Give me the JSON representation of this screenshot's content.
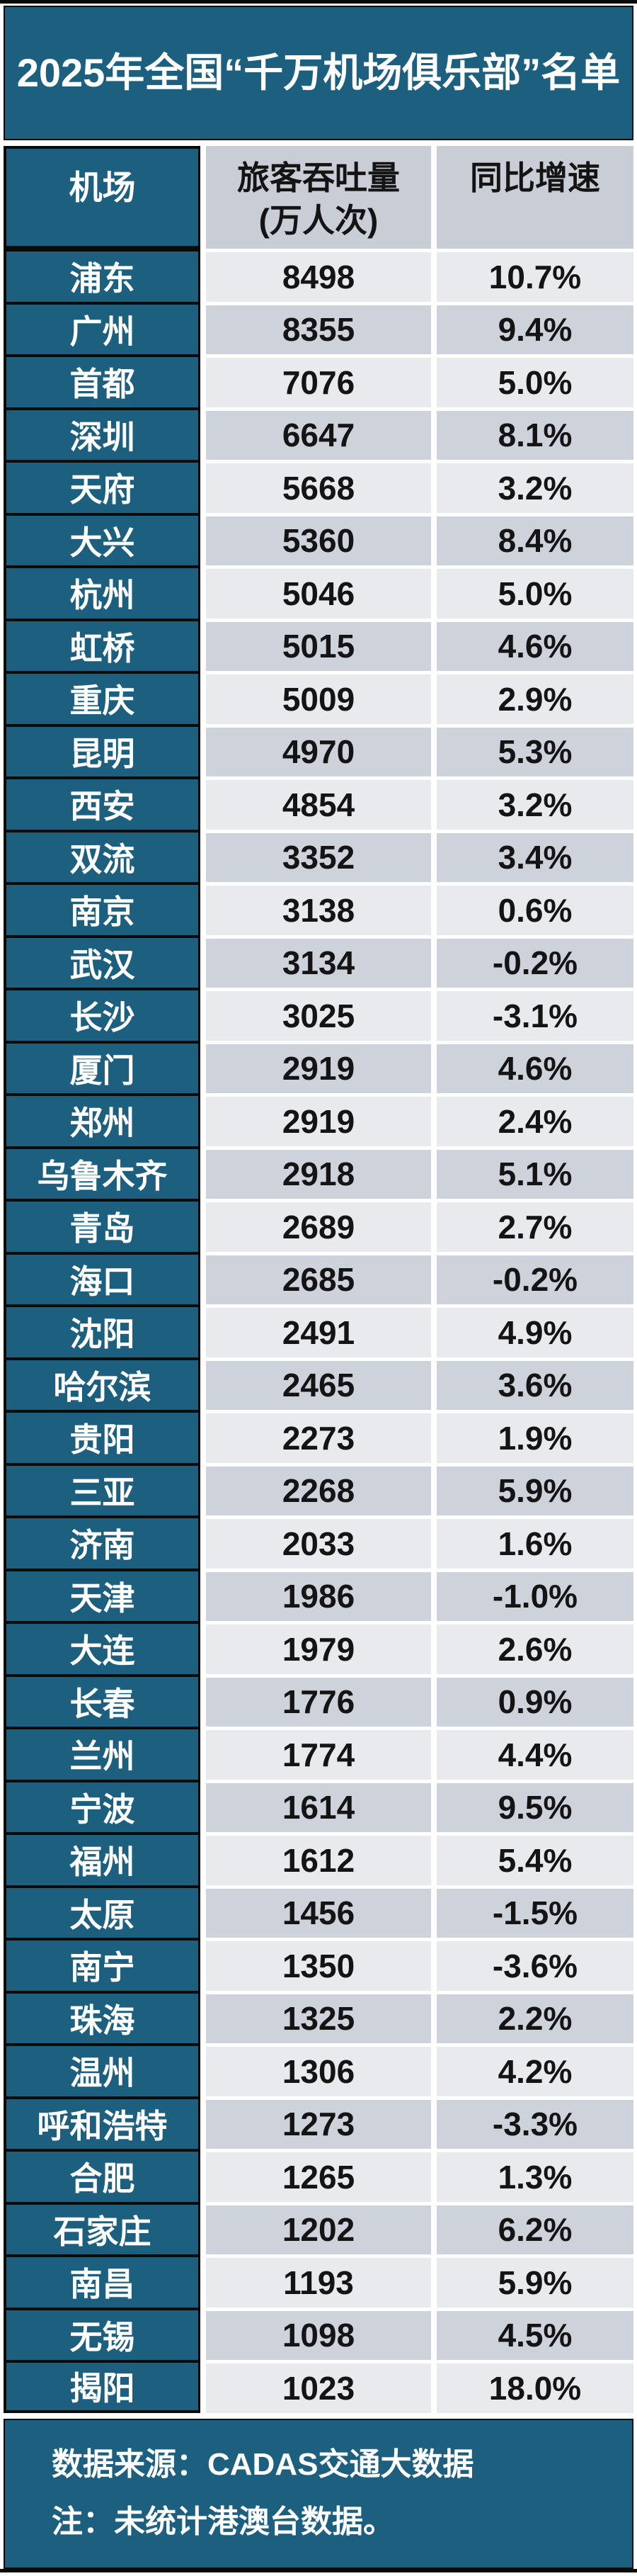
{
  "page": {
    "title": "2025年全国“千万机场俱乐部”名单"
  },
  "table": {
    "headers": {
      "airport": "机场",
      "throughput_line1": "旅客吞吐量",
      "throughput_line2": "(万人次)",
      "growth": "同比增速"
    },
    "rows": [
      {
        "airport": "浦东",
        "throughput": "8498",
        "growth": "10.7%"
      },
      {
        "airport": "广州",
        "throughput": "8355",
        "growth": "9.4%"
      },
      {
        "airport": "首都",
        "throughput": "7076",
        "growth": "5.0%"
      },
      {
        "airport": "深圳",
        "throughput": "6647",
        "growth": "8.1%"
      },
      {
        "airport": "天府",
        "throughput": "5668",
        "growth": "3.2%"
      },
      {
        "airport": "大兴",
        "throughput": "5360",
        "growth": "8.4%"
      },
      {
        "airport": "杭州",
        "throughput": "5046",
        "growth": "5.0%"
      },
      {
        "airport": "虹桥",
        "throughput": "5015",
        "growth": "4.6%"
      },
      {
        "airport": "重庆",
        "throughput": "5009",
        "growth": "2.9%"
      },
      {
        "airport": "昆明",
        "throughput": "4970",
        "growth": "5.3%"
      },
      {
        "airport": "西安",
        "throughput": "4854",
        "growth": "3.2%"
      },
      {
        "airport": "双流",
        "throughput": "3352",
        "growth": "3.4%"
      },
      {
        "airport": "南京",
        "throughput": "3138",
        "growth": "0.6%"
      },
      {
        "airport": "武汉",
        "throughput": "3134",
        "growth": "-0.2%"
      },
      {
        "airport": "长沙",
        "throughput": "3025",
        "growth": "-3.1%"
      },
      {
        "airport": "厦门",
        "throughput": "2919",
        "growth": "4.6%"
      },
      {
        "airport": "郑州",
        "throughput": "2919",
        "growth": "2.4%"
      },
      {
        "airport": "乌鲁木齐",
        "throughput": "2918",
        "growth": "5.1%"
      },
      {
        "airport": "青岛",
        "throughput": "2689",
        "growth": "2.7%"
      },
      {
        "airport": "海口",
        "throughput": "2685",
        "growth": "-0.2%"
      },
      {
        "airport": "沈阳",
        "throughput": "2491",
        "growth": "4.9%"
      },
      {
        "airport": "哈尔滨",
        "throughput": "2465",
        "growth": "3.6%"
      },
      {
        "airport": "贵阳",
        "throughput": "2273",
        "growth": "1.9%"
      },
      {
        "airport": "三亚",
        "throughput": "2268",
        "growth": "5.9%"
      },
      {
        "airport": "济南",
        "throughput": "2033",
        "growth": "1.6%"
      },
      {
        "airport": "天津",
        "throughput": "1986",
        "growth": "-1.0%"
      },
      {
        "airport": "大连",
        "throughput": "1979",
        "growth": "2.6%"
      },
      {
        "airport": "长春",
        "throughput": "1776",
        "growth": "0.9%"
      },
      {
        "airport": "兰州",
        "throughput": "1774",
        "growth": "4.4%"
      },
      {
        "airport": "宁波",
        "throughput": "1614",
        "growth": "9.5%"
      },
      {
        "airport": "福州",
        "throughput": "1612",
        "growth": "5.4%"
      },
      {
        "airport": "太原",
        "throughput": "1456",
        "growth": "-1.5%"
      },
      {
        "airport": "南宁",
        "throughput": "1350",
        "growth": "-3.6%"
      },
      {
        "airport": "珠海",
        "throughput": "1325",
        "growth": "2.2%"
      },
      {
        "airport": "温州",
        "throughput": "1306",
        "growth": "4.2%"
      },
      {
        "airport": "呼和浩特",
        "throughput": "1273",
        "growth": "-3.3%"
      },
      {
        "airport": "合肥",
        "throughput": "1265",
        "growth": "1.3%"
      },
      {
        "airport": "石家庄",
        "throughput": "1202",
        "growth": "6.2%"
      },
      {
        "airport": "南昌",
        "throughput": "1193",
        "growth": "5.9%"
      },
      {
        "airport": "无锡",
        "throughput": "1098",
        "growth": "4.5%"
      },
      {
        "airport": "揭阳",
        "throughput": "1023",
        "growth": "18.0%"
      }
    ]
  },
  "footer": {
    "source_line": "数据来源：CADAS交通大数据",
    "note_line": "注：未统计港澳台数据。"
  },
  "colors": {
    "teal": "#1D5F7E",
    "row_light": "#E9EAEE",
    "row_gray": "#CDD2DB",
    "header_gray": "#C8CDD6",
    "dark_border": "#0A0A0A"
  },
  "chart_data": {
    "type": "table",
    "title": "2025年全国“千万机场俱乐部”名单",
    "columns": [
      "机场",
      "旅客吞吐量(万人次)",
      "同比增速(%)"
    ],
    "rows": [
      [
        "浦东",
        8498,
        10.7
      ],
      [
        "广州",
        8355,
        9.4
      ],
      [
        "首都",
        7076,
        5.0
      ],
      [
        "深圳",
        6647,
        8.1
      ],
      [
        "天府",
        5668,
        3.2
      ],
      [
        "大兴",
        5360,
        8.4
      ],
      [
        "杭州",
        5046,
        5.0
      ],
      [
        "虹桥",
        5015,
        4.6
      ],
      [
        "重庆",
        5009,
        2.9
      ],
      [
        "昆明",
        4970,
        5.3
      ],
      [
        "西安",
        4854,
        3.2
      ],
      [
        "双流",
        3352,
        3.4
      ],
      [
        "南京",
        3138,
        0.6
      ],
      [
        "武汉",
        3134,
        -0.2
      ],
      [
        "长沙",
        3025,
        -3.1
      ],
      [
        "厦门",
        2919,
        4.6
      ],
      [
        "郑州",
        2919,
        2.4
      ],
      [
        "乌鲁木齐",
        2918,
        5.1
      ],
      [
        "青岛",
        2689,
        2.7
      ],
      [
        "海口",
        2685,
        -0.2
      ],
      [
        "沈阳",
        2491,
        4.9
      ],
      [
        "哈尔滨",
        2465,
        3.6
      ],
      [
        "贵阳",
        2273,
        1.9
      ],
      [
        "三亚",
        2268,
        5.9
      ],
      [
        "济南",
        2033,
        1.6
      ],
      [
        "天津",
        1986,
        -1.0
      ],
      [
        "大连",
        1979,
        2.6
      ],
      [
        "长春",
        1776,
        0.9
      ],
      [
        "兰州",
        1774,
        4.4
      ],
      [
        "宁波",
        1614,
        9.5
      ],
      [
        "福州",
        1612,
        5.4
      ],
      [
        "太原",
        1456,
        -1.5
      ],
      [
        "南宁",
        1350,
        -3.6
      ],
      [
        "珠海",
        1325,
        2.2
      ],
      [
        "温州",
        1306,
        4.2
      ],
      [
        "呼和浩特",
        1273,
        -3.3
      ],
      [
        "合肥",
        1265,
        1.3
      ],
      [
        "石家庄",
        1202,
        6.2
      ],
      [
        "南昌",
        1193,
        5.9
      ],
      [
        "无锡",
        1098,
        4.5
      ],
      [
        "揭阳",
        1023,
        18.0
      ]
    ],
    "notes": [
      "数据来源：CADAS交通大数据",
      "注：未统计港澳台数据。"
    ],
    "legend_position": "none",
    "grid": false
  }
}
